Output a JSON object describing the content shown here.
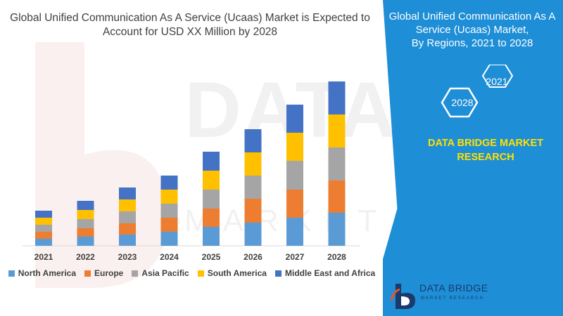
{
  "header": {
    "title_line1": "Global Unified Communication As A Service (Ucaas) Market is Expected to",
    "title_line2": "Account for USD XX Million by 2028"
  },
  "panel": {
    "title_line1": "Global Unified Communication As A",
    "title_line2": "Service (Ucaas) Market,",
    "title_line3": "By Regions, 2021 to 2028",
    "year_start": "2021",
    "year_end": "2028",
    "brand_line1": "DATA BRIDGE MARKET",
    "brand_line2": "RESEARCH"
  },
  "watermark": {
    "text": "DATA BRIDGE",
    "sub": "MARKET RESEARCH"
  },
  "logo": {
    "name": "DATA BRIDGE",
    "sub": "MARKET RESEARCH"
  },
  "colors": {
    "panel": "#1e8ed6",
    "accent_yellow": "#ffe100"
  },
  "chart_data": {
    "type": "bar",
    "stacked": true,
    "categories": [
      "2021",
      "2022",
      "2023",
      "2024",
      "2025",
      "2026",
      "2027",
      "2028"
    ],
    "series": [
      {
        "name": "North America",
        "color": "#5b9bd5",
        "values": [
          10,
          13,
          16,
          20,
          27,
          33,
          40,
          47
        ]
      },
      {
        "name": "Europe",
        "color": "#ed7d31",
        "values": [
          10,
          12,
          16,
          20,
          26,
          34,
          40,
          46
        ]
      },
      {
        "name": "Asia Pacific",
        "color": "#a5a5a5",
        "values": [
          10,
          13,
          17,
          20,
          27,
          33,
          41,
          47
        ]
      },
      {
        "name": "South America",
        "color": "#ffc000",
        "values": [
          10,
          13,
          17,
          20,
          27,
          33,
          40,
          47
        ]
      },
      {
        "name": "Middle East and Africa",
        "color": "#4472c4",
        "values": [
          10,
          13,
          17,
          20,
          27,
          33,
          40,
          47
        ]
      }
    ],
    "ylim": [
      0,
      240
    ],
    "legend_position": "bottom",
    "grid": false
  }
}
